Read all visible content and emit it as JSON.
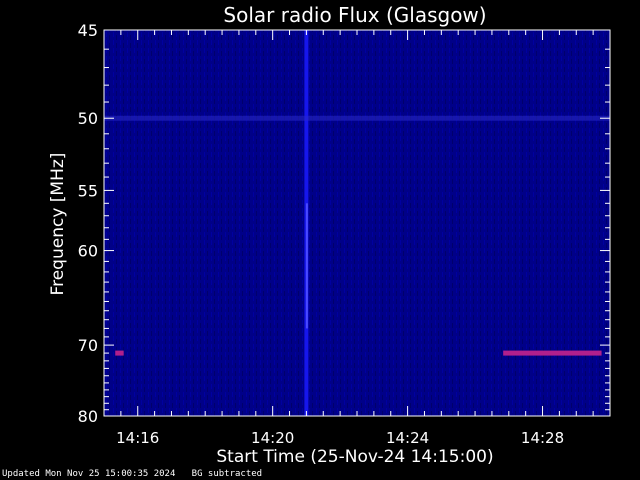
{
  "chart_data": {
    "type": "heatmap",
    "title": "Solar radio Flux (Glasgow)",
    "xlabel": "Start Time (25-Nov-24 14:15:00)",
    "ylabel": "Frequency [MHz]",
    "x_ticks": [
      "14:16",
      "14:20",
      "14:24",
      "14:28"
    ],
    "y_ticks": [
      "45",
      "50",
      "55",
      "60",
      "70",
      "80"
    ],
    "x_range": [
      "14:15:00",
      "14:30:00"
    ],
    "y_range_mhz": [
      45,
      80
    ],
    "y_scale": "reciprocal",
    "background_color": "#000088",
    "features": [
      {
        "kind": "vertical-burst",
        "time": "14:21:00",
        "freq_range_mhz": [
          45,
          80
        ],
        "color": "#1a1aff"
      },
      {
        "kind": "interference-line",
        "freq_mhz": 50,
        "color": "#2a2acc"
      },
      {
        "kind": "interference-line",
        "freq_mhz": 71,
        "time_range": [
          "14:26:50",
          "14:29:45"
        ],
        "color": "#b0208c"
      },
      {
        "kind": "interference-line",
        "freq_mhz": 71,
        "time_range": [
          "14:15:20",
          "14:15:35"
        ],
        "color": "#b0208c"
      }
    ]
  },
  "footer": {
    "updated": "Updated Mon Nov 25 15:00:35 2024",
    "note": "BG subtracted"
  }
}
